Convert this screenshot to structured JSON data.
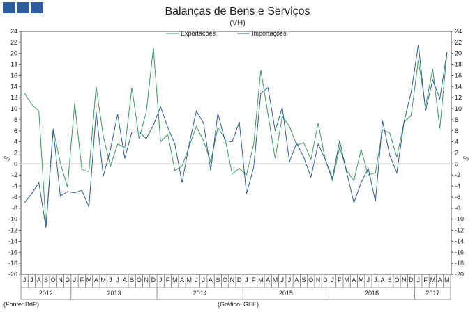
{
  "header": {
    "tabs": [
      "",
      "",
      ""
    ],
    "title": "Balanças de Bens e Serviços",
    "subtitle": "(VH)"
  },
  "footer": {
    "source": "(Fonte: BdP)",
    "credit": "(Gráfico: GEE)"
  },
  "colors": {
    "exports": "#3a9a5c",
    "imports": "#2d5d9c",
    "tab": "#2d5d9c"
  },
  "chart_data": {
    "type": "line",
    "title": "Balanças de Bens e Serviços",
    "subtitle": "(VH)",
    "ylabel_left": "%",
    "ylabel_right": "%",
    "ylim": [
      -20,
      24
    ],
    "y_ticks": [
      -20,
      -18,
      -16,
      -14,
      -12,
      -10,
      -8,
      -6,
      -4,
      -2,
      0,
      2,
      4,
      6,
      8,
      10,
      12,
      14,
      16,
      18,
      20,
      22,
      24
    ],
    "legend_position": "top-center",
    "x": [
      "J",
      "J",
      "A",
      "S",
      "O",
      "N",
      "D",
      "J",
      "F",
      "M",
      "A",
      "M",
      "J",
      "J",
      "A",
      "S",
      "O",
      "N",
      "D",
      "J",
      "F",
      "M",
      "A",
      "M",
      "J",
      "J",
      "A",
      "S",
      "O",
      "N",
      "D",
      "J",
      "F",
      "M",
      "A",
      "M",
      "J",
      "J",
      "A",
      "S",
      "O",
      "N",
      "D",
      "J",
      "F",
      "M",
      "A",
      "M",
      "J",
      "J",
      "A",
      "S",
      "O",
      "N",
      "D",
      "J",
      "F",
      "M",
      "A",
      "M"
    ],
    "years": [
      {
        "label": "2012",
        "start": 0,
        "end": 6
      },
      {
        "label": "2013",
        "start": 7,
        "end": 18
      },
      {
        "label": "2014",
        "start": 19,
        "end": 30
      },
      {
        "label": "2015",
        "start": 31,
        "end": 42
      },
      {
        "label": "2016",
        "start": 43,
        "end": 54
      },
      {
        "label": "2017",
        "start": 55,
        "end": 59
      }
    ],
    "series": [
      {
        "name": "Exportações",
        "color": "#3a9a5c",
        "values": [
          12.8,
          10.8,
          9.6,
          -11.2,
          6.4,
          0.2,
          -4.2,
          11.0,
          -1.0,
          -1.4,
          14.0,
          5.0,
          -0.4,
          3.6,
          3.0,
          13.8,
          4.6,
          9.4,
          21.0,
          4.0,
          5.4,
          -1.2,
          -0.4,
          3.2,
          6.8,
          4.2,
          0.4,
          6.6,
          4.6,
          -1.8,
          -0.8,
          -2.0,
          3.6,
          17.0,
          9.0,
          1.0,
          8.6,
          6.8,
          3.4,
          3.8,
          0.8,
          7.4,
          0.8,
          -3.0,
          3.0,
          -1.2,
          -3.0,
          2.6,
          -2.0,
          -1.6,
          6.2,
          5.6,
          1.2,
          7.6,
          8.8,
          18.8,
          10.4,
          17.2,
          6.4,
          20.2
        ]
      },
      {
        "name": "Importações",
        "color": "#2d5d9c",
        "values": [
          -7.0,
          -5.4,
          -3.4,
          -11.6,
          6.2,
          -5.8,
          -5.0,
          -5.2,
          -4.8,
          -7.8,
          9.4,
          -2.2,
          2.6,
          9.0,
          1.0,
          5.8,
          5.8,
          4.6,
          7.0,
          10.4,
          6.6,
          3.6,
          -3.4,
          3.6,
          9.6,
          7.4,
          -1.2,
          9.2,
          4.2,
          4.0,
          7.6,
          -5.4,
          -0.6,
          12.8,
          13.8,
          6.0,
          10.2,
          0.4,
          3.8,
          1.2,
          -2.4,
          3.6,
          0.8,
          -2.6,
          4.2,
          -1.6,
          -7.0,
          -3.4,
          -0.8,
          -6.8,
          7.8,
          1.6,
          -1.6,
          7.6,
          13.0,
          21.6,
          9.6,
          15.2,
          11.8,
          20.2
        ]
      }
    ]
  }
}
